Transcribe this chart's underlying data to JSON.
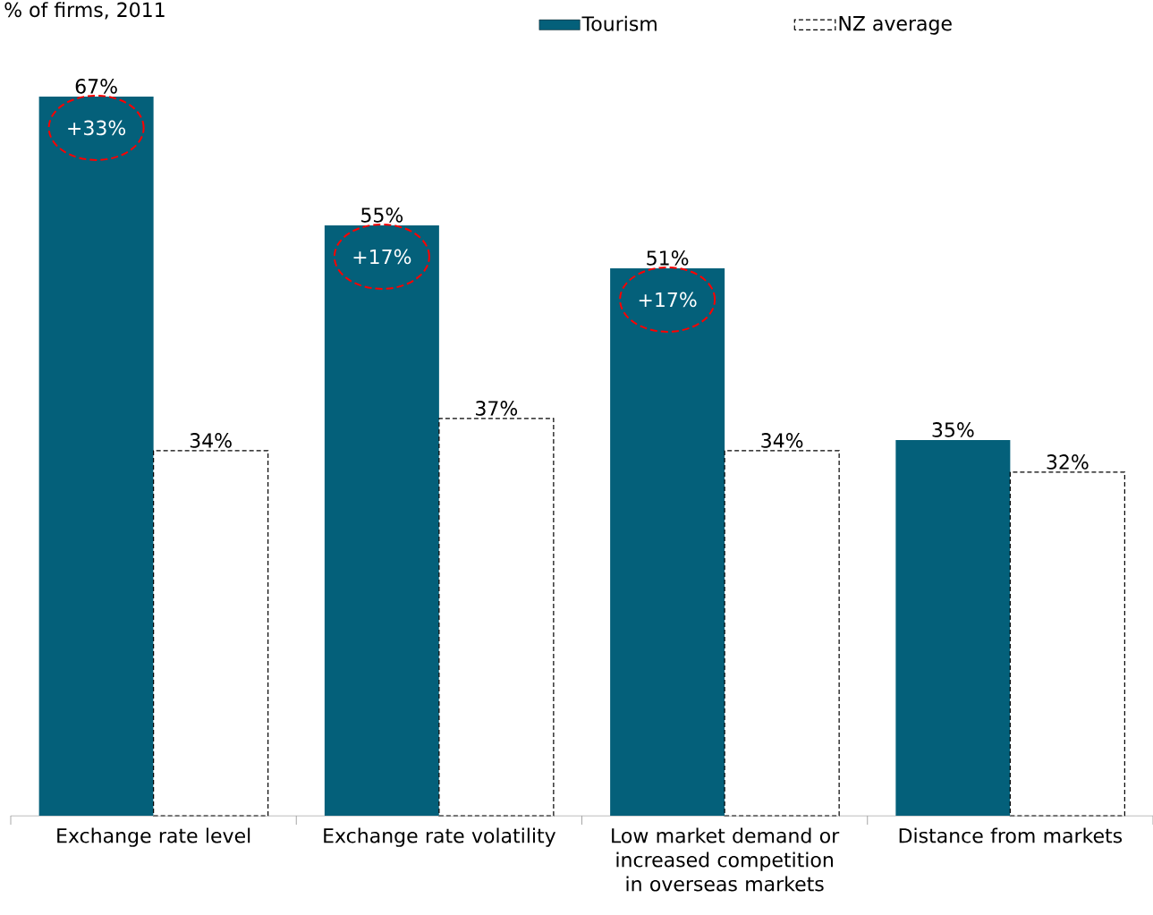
{
  "chart_data": {
    "type": "bar",
    "title": "% of firms, 2011",
    "categories": [
      "Exchange rate level",
      "Exchange rate volatility",
      "Low market demand or increased competition in overseas markets",
      "Distance from markets"
    ],
    "series": [
      {
        "name": "Tourism",
        "color": "#04607a",
        "values": [
          67,
          55,
          51,
          35
        ],
        "value_labels": [
          "67%",
          "55%",
          "51%",
          "35%"
        ]
      },
      {
        "name": "NZ average",
        "color": "#ffffff",
        "line_style": "dashed",
        "values": [
          34,
          37,
          34,
          32
        ],
        "value_labels": [
          "34%",
          "37%",
          "34%",
          "32%"
        ]
      }
    ],
    "annotations": [
      {
        "text": "+33%",
        "x": "Exchange rate level",
        "y": 67
      },
      {
        "text": "+17%",
        "x": "Exchange rate volatility",
        "y": 55
      },
      {
        "text": "+17%",
        "x": "Low market demand or increased competition in overseas markets",
        "y": 51
      }
    ],
    "legend": "top"
  }
}
